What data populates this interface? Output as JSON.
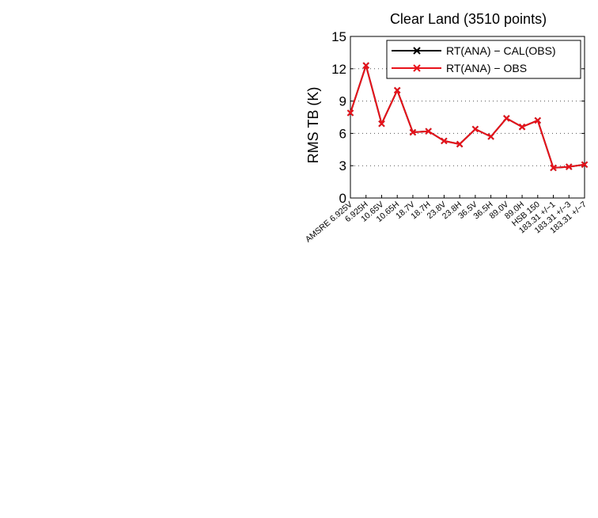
{
  "chart_data": {
    "type": "line",
    "title": "Clear Land (3510 points)",
    "xlabel": "",
    "ylabel": "RMS TB (K)",
    "ylim": [
      0,
      15
    ],
    "yticks": [
      0,
      3,
      6,
      9,
      12,
      15
    ],
    "grid": "horizontal dotted",
    "legend_position": "top-right",
    "categories": [
      "AMSRE 6.925V",
      "6.925H",
      "10.65V",
      "10.65H",
      "18.7V",
      "18.7H",
      "23.8V",
      "23.8H",
      "36.5V",
      "36.5H",
      "89.0V",
      "89.0H",
      "HSB 150",
      "183.31 +/−1",
      "183.31 +/−3",
      "183.31 +/−7"
    ],
    "series": [
      {
        "name": "RT(ANA) − CAL(OBS)",
        "color": "#000000",
        "marker": "x",
        "values": [
          7.9,
          12.3,
          6.9,
          10.0,
          6.1,
          6.2,
          5.3,
          5.0,
          6.4,
          5.7,
          7.4,
          6.6,
          7.2,
          2.8,
          2.9,
          3.1
        ]
      },
      {
        "name": "RT(ANA) − OBS",
        "color": "#e8121b",
        "marker": "x",
        "values": [
          7.9,
          12.3,
          6.9,
          10.0,
          6.1,
          6.2,
          5.3,
          5.0,
          6.4,
          5.7,
          7.4,
          6.6,
          7.2,
          2.8,
          2.9,
          3.1
        ]
      }
    ]
  }
}
